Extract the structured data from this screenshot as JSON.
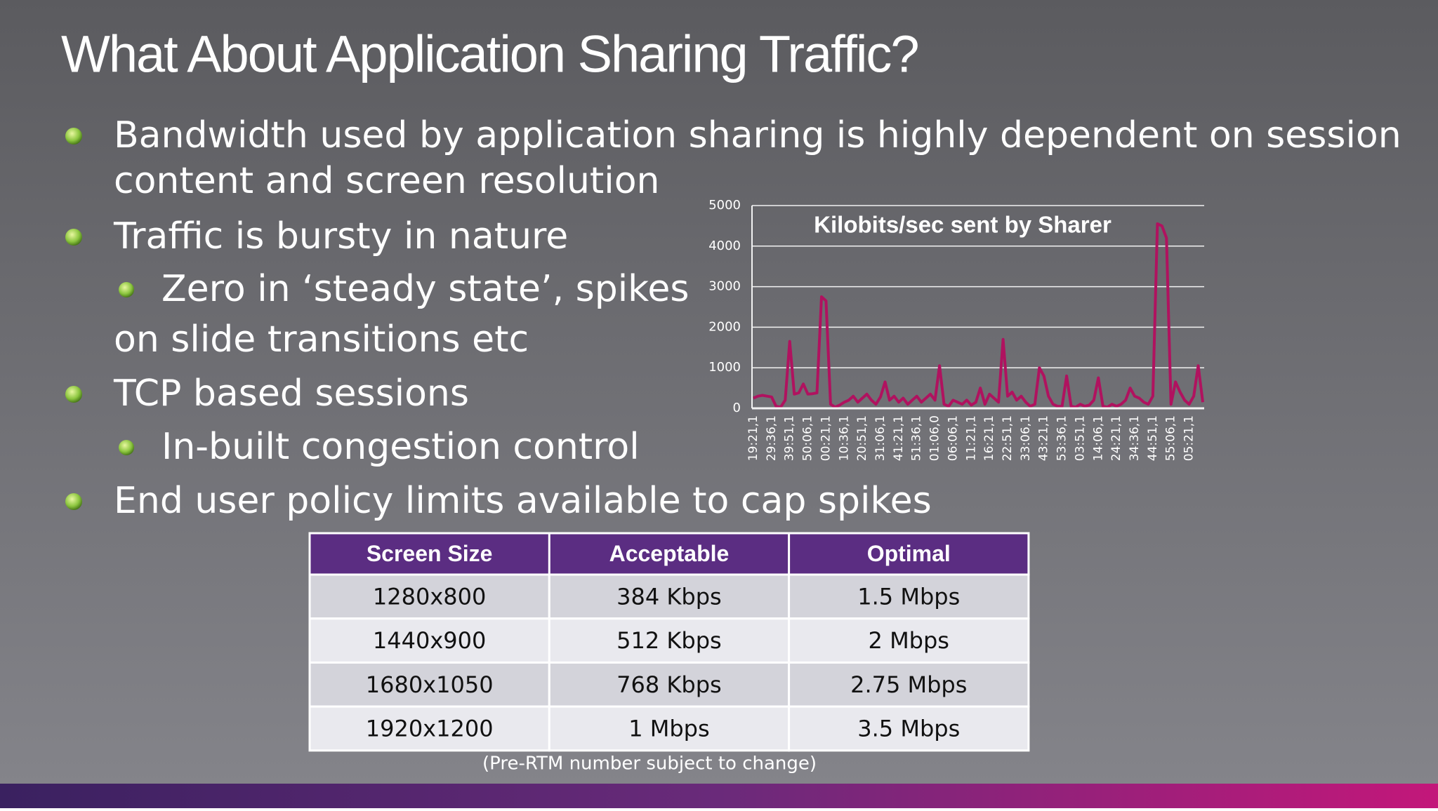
{
  "title": "What About Application Sharing Traffic?",
  "bullets": [
    {
      "level": 0,
      "lines": [
        "Bandwidth used by application sharing is highly dependent on session",
        "content and screen resolution"
      ]
    },
    {
      "level": 0,
      "lines": [
        "Traffic is bursty in nature"
      ]
    },
    {
      "level": 1,
      "lines": [
        "Zero in ‘steady state’, spikes",
        "on slide transitions etc"
      ]
    },
    {
      "level": 0,
      "lines": [
        "TCP based sessions"
      ]
    },
    {
      "level": 1,
      "lines": [
        "In-built congestion control"
      ]
    },
    {
      "level": 0,
      "lines": [
        "End user policy limits available to cap spikes"
      ]
    }
  ],
  "chart_data": {
    "type": "line",
    "title": "Kilobits/sec  sent by Sharer",
    "color": "#b0125f",
    "categories": [
      "19:21,1",
      null,
      null,
      null,
      "29:36,1",
      null,
      null,
      null,
      "39:51,1",
      null,
      null,
      null,
      "50:06,1",
      null,
      null,
      null,
      "00:21,1",
      null,
      null,
      null,
      "10:36,1",
      null,
      null,
      null,
      "20:51,1",
      null,
      null,
      null,
      "31:06,1",
      null,
      null,
      null,
      "41:21,1",
      null,
      null,
      null,
      "51:36,1",
      null,
      null,
      null,
      "01:06,0",
      null,
      null,
      null,
      "06:06,1",
      null,
      null,
      null,
      "11:21,1",
      null,
      null,
      null,
      "16:21,1",
      null,
      null,
      null,
      "22:51,1",
      null,
      null,
      null,
      "33:06,1",
      null,
      null,
      null,
      "43:21,1",
      null,
      null,
      null,
      "53:36,1",
      null,
      null,
      null,
      "03:51,1",
      null,
      null,
      null,
      "14:06,1",
      null,
      null,
      null,
      "24:21,1",
      null,
      null,
      null,
      "34:36,1",
      null,
      null,
      null,
      "44:51,1",
      null,
      null,
      null,
      "55:06,1",
      null,
      null,
      null,
      "05:21,1",
      null,
      null,
      null
    ],
    "values": [
      250,
      300,
      320,
      300,
      280,
      50,
      30,
      200,
      1650,
      350,
      380,
      600,
      350,
      360,
      380,
      2750,
      2650,
      100,
      30,
      80,
      150,
      200,
      300,
      150,
      250,
      350,
      200,
      100,
      280,
      650,
      200,
      300,
      150,
      250,
      100,
      200,
      300,
      150,
      250,
      350,
      200,
      1050,
      100,
      50,
      200,
      150,
      100,
      200,
      80,
      150,
      500,
      100,
      350,
      250,
      150,
      1700,
      300,
      400,
      200,
      300,
      150,
      50,
      100,
      1000,
      800,
      300,
      100,
      50,
      50,
      800,
      50,
      30,
      100,
      50,
      80,
      200,
      750,
      50,
      30,
      100,
      50,
      100,
      200,
      500,
      300,
      250,
      150,
      100,
      300,
      4550,
      4500,
      4200,
      100,
      650,
      400,
      200,
      100,
      300,
      1050,
      150
    ],
    "ylim": [
      0,
      5000
    ],
    "yticks": [
      0,
      1000,
      2000,
      3000,
      4000,
      5000
    ],
    "grid": true
  },
  "table": {
    "header": [
      "Screen Size",
      "Acceptable",
      "Optimal"
    ],
    "rows": [
      [
        "1280x800",
        "384 Kbps",
        "1.5 Mbps"
      ],
      [
        "1440x900",
        "512 Kbps",
        "2 Mbps"
      ],
      [
        "1680x1050",
        "768 Kbps",
        "2.75 Mbps"
      ],
      [
        "1920x1200",
        "1 Mbps",
        "3.5 Mbps"
      ]
    ]
  },
  "footnote": "(Pre-RTM number subject to change)"
}
